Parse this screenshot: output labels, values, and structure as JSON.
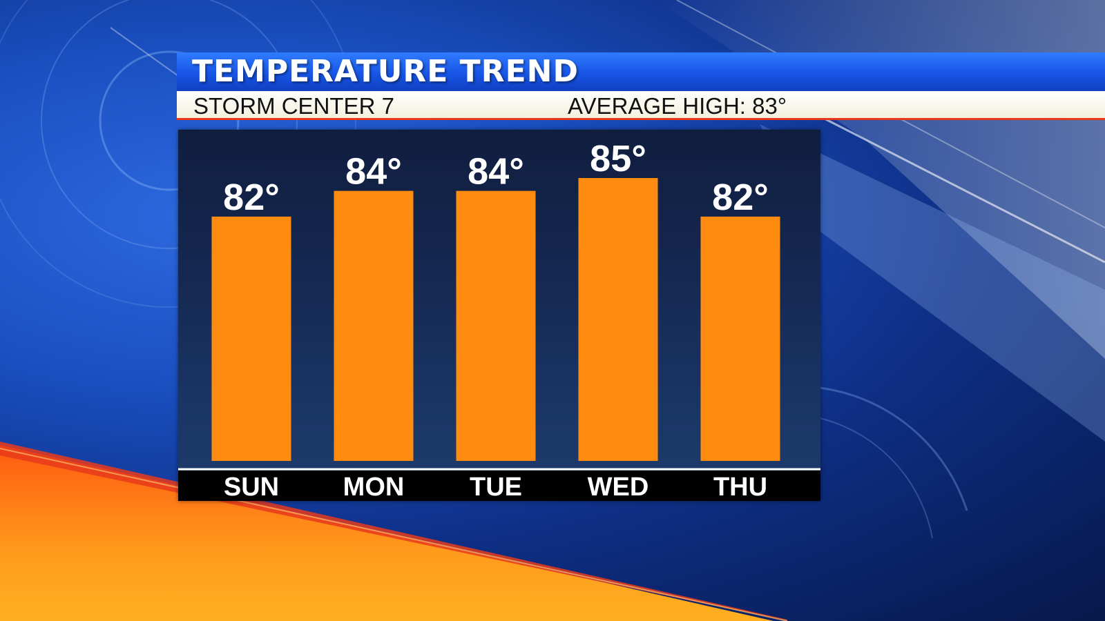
{
  "title": "TEMPERATURE TREND",
  "subtitle": {
    "station": "STORM CENTER 7",
    "average_high": "AVERAGE HIGH: 83°"
  },
  "colors": {
    "bar": "#ff8c10",
    "title_bar": "#1855e6",
    "subtitle_bar": "#ffffff",
    "accent_line": "#e8391c",
    "panel": "#162a55"
  },
  "chart_data": {
    "type": "bar",
    "categories": [
      "SUN",
      "MON",
      "TUE",
      "WED",
      "THU"
    ],
    "values": [
      82,
      84,
      84,
      85,
      82
    ],
    "value_labels": [
      "82°",
      "84°",
      "84°",
      "85°",
      "82°"
    ],
    "unit": "°",
    "title": "TEMPERATURE TREND",
    "xlabel": "",
    "ylabel": "",
    "ylim": [
      63,
      85
    ],
    "grid": false,
    "legend": "none"
  }
}
